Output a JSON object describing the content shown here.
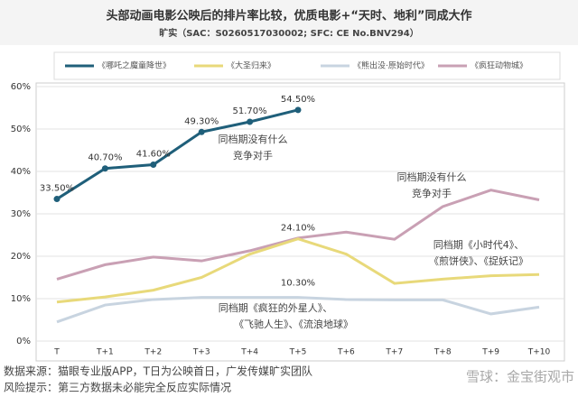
{
  "chart_data": {
    "type": "line",
    "title": "头部动画电影公映后的排片率比较，优质电影+“天时、地利”同成大作",
    "subtitle": "旷实（SAC：S0260517030002; SFC: CE No.BNV294）",
    "categories": [
      "T",
      "T+1",
      "T+2",
      "T+3",
      "T+4",
      "T+5",
      "T+6",
      "T+7",
      "T+8",
      "T+9",
      "T+10"
    ],
    "series": [
      {
        "name": "《哪吒之魔童降世》",
        "color": "#1f5f7a",
        "values": [
          33.5,
          40.7,
          41.6,
          49.3,
          51.7,
          54.5,
          null,
          null,
          null,
          null,
          null
        ],
        "value_labels": [
          "33.50%",
          "40.70%",
          "41.60%",
          "49.30%",
          "51.70%",
          "54.50%",
          null,
          null,
          null,
          null,
          null
        ]
      },
      {
        "name": "《大圣归来》",
        "color": "#e8d97a",
        "values": [
          9.2,
          10.4,
          12,
          15,
          20.5,
          24.1,
          20.5,
          13.6,
          14.6,
          15.4,
          15.7
        ],
        "value_labels": [
          null,
          null,
          null,
          null,
          null,
          "24.10%",
          null,
          null,
          null,
          null,
          null
        ]
      },
      {
        "name": "《熊出没·原始时代》",
        "color": "#c8d4e0",
        "values": [
          4.5,
          8.5,
          9.8,
          10.3,
          10.3,
          10.3,
          9.8,
          9.7,
          9.7,
          6.4,
          8.0
        ],
        "value_labels": [
          null,
          null,
          null,
          null,
          null,
          "10.30%",
          null,
          null,
          null,
          null,
          null
        ]
      },
      {
        "name": "《疯狂动物城》",
        "color": "#c9a0b4",
        "values": [
          14.6,
          18,
          19.8,
          18.9,
          21.3,
          24.3,
          25.7,
          24,
          31.7,
          35.6,
          33.3
        ],
        "value_labels": [
          null,
          null,
          null,
          null,
          null,
          null,
          null,
          null,
          null,
          null,
          null
        ]
      }
    ],
    "ylim": [
      0,
      60
    ],
    "yticks": [
      {
        "value": 0,
        "label": "0%"
      },
      {
        "value": 10,
        "label": "10%"
      },
      {
        "value": 20,
        "label": "20%"
      },
      {
        "value": 30,
        "label": "30%"
      },
      {
        "value": 40,
        "label": "40%"
      },
      {
        "value": 50,
        "label": "50%"
      },
      {
        "value": 60,
        "label": "60%"
      }
    ],
    "grid": true,
    "legend": "top",
    "annotations": [
      {
        "lines": [
          "同档期没有什么",
          "竞争对手"
        ]
      },
      {
        "lines": [
          "同档期没有什么",
          "竞争对手"
        ]
      },
      {
        "lines": [
          "同档期《小时代4》、",
          "《煎饼侠》、《捉妖记》"
        ]
      },
      {
        "lines": [
          "同档期《疯狂的外星人》、",
          "《飞驰人生》、《流浪地球》"
        ]
      }
    ],
    "footer": [
      "数据来源：猫眼专业版APP，T日为公映首日，广发传媒旷实团队",
      "风险提示：第三方数据未必能完全反应实际情况"
    ],
    "watermark": "雪球：金宝街观市"
  }
}
